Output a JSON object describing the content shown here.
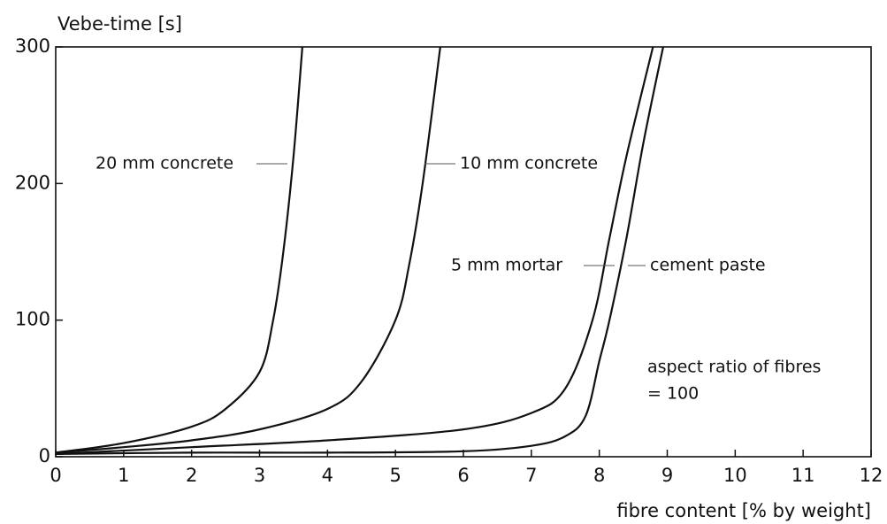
{
  "chart_data": {
    "type": "line",
    "y_label": "Vebe-time [s]",
    "x_label": "fibre content [% by weight]",
    "xlim": [
      0,
      12
    ],
    "xticks": [
      0,
      1,
      2,
      3,
      4,
      5,
      6,
      7,
      8,
      9,
      10,
      11,
      12
    ],
    "ylim": [
      0,
      300
    ],
    "yticks": [
      0,
      100,
      200,
      300
    ],
    "series": [
      {
        "name": "20 mm concrete",
        "color": "#111111",
        "x": [
          0,
          1,
          2,
          2.5,
          3,
          3.2,
          3.35,
          3.5,
          3.63
        ],
        "values": [
          3,
          10,
          22,
          35,
          62,
          100,
          150,
          220,
          300
        ]
      },
      {
        "name": "10 mm concrete",
        "color": "#111111",
        "x": [
          0,
          1,
          2,
          3,
          4,
          4.5,
          5,
          5.2,
          5.4,
          5.66
        ],
        "values": [
          3,
          7,
          12,
          20,
          35,
          55,
          100,
          140,
          200,
          300
        ]
      },
      {
        "name": "5 mm mortar",
        "color": "#111111",
        "x": [
          0,
          2,
          4,
          6,
          7,
          7.5,
          7.9,
          8.15,
          8.4,
          8.79
        ],
        "values": [
          2,
          7,
          12,
          20,
          32,
          50,
          100,
          160,
          220,
          300
        ]
      },
      {
        "name": "cement paste",
        "color": "#111111",
        "x": [
          0,
          2,
          4,
          6,
          7,
          7.5,
          7.8,
          8.0,
          8.15,
          8.4,
          8.65,
          8.94
        ],
        "values": [
          2,
          3,
          3,
          4,
          8,
          15,
          30,
          70,
          100,
          160,
          230,
          300
        ]
      }
    ],
    "annotations": [
      "aspect ratio of fibres",
      "= 100"
    ]
  }
}
